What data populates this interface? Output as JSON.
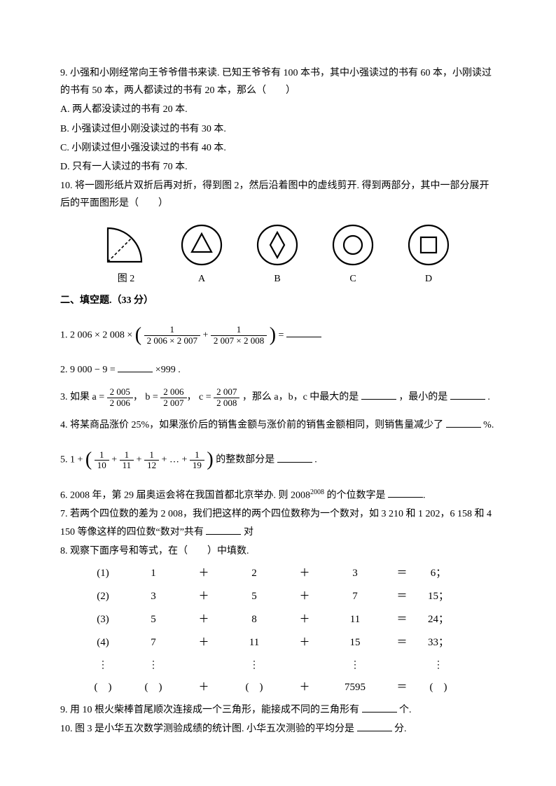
{
  "q9": {
    "stem": "9. 小强和小刚经常向王爷爷借书来读. 已知王爷爷有 100 本书，其中小强读过的书有 60 本，小刚读过的书有 50 本，两人都读过的书有 20 本，那么（　　）",
    "A": "A. 两人都没读过的书有 20 本.",
    "B": "B. 小强读过但小刚没读过的书有 30 本.",
    "C": "C. 小刚读过但小强没读过的书有 40 本.",
    "D": "D. 只有一人读过的书有 70 本."
  },
  "q10": {
    "stem": "10. 将一圆形纸片双折后再对折，得到图 2，然后沿着图中的虚线剪开. 得到两部分，其中一部分展开后的平面图形是（　　）",
    "labels": {
      "fig": "图 2",
      "A": "A",
      "B": "B",
      "C": "C",
      "D": "D"
    },
    "svg": {
      "circle_stroke": "#000000",
      "circle_fill": "#ffffff",
      "stroke_width": 2
    }
  },
  "section2": "二、填空题.（33 分）",
  "f1": {
    "prefix": "1. ",
    "lhs_a": "2 006 × 2 008 ×",
    "frac1_num": "1",
    "frac1_den": "2 006 × 2 007",
    "plus": "+",
    "frac2_num": "1",
    "frac2_den": "2 007 × 2 008",
    "eq": "="
  },
  "f2": {
    "text_a": "2. 9 000 − 9 =",
    "text_b": "×999 ."
  },
  "f3": {
    "prefix": "3. 如果 ",
    "a_lhs": "a =",
    "a_num": "2 005",
    "a_den": "2 006",
    "b_lhs": "b =",
    "b_num": "2 006",
    "b_den": "2 007",
    "c_lhs": "c =",
    "c_num": "2 007",
    "c_den": "2 008",
    "mid": "，那么 a，b，c 中最大的是",
    "mid2": "，最小的是",
    "end": "."
  },
  "f4": {
    "text": "4. 将某商品涨价 25%，如果涨价后的销售金额与涨价前的销售金额相同，则销售量减少了",
    "suffix": "%."
  },
  "f5": {
    "prefix": "5. ",
    "lead": "1 +",
    "t1_num": "1",
    "t1_den": "10",
    "t2_num": "1",
    "t2_den": "11",
    "t3_num": "1",
    "t3_den": "12",
    "dots": "+ … +",
    "t4_num": "1",
    "t4_den": "19",
    "tail": "的整数部分是",
    "end": "."
  },
  "f6": {
    "a": "6. 2008 年，第 29 届奥运会将在我国首都北京举办. 则 2008",
    "sup": "2008",
    "b": " 的个位数字是",
    "end": "."
  },
  "f7": {
    "a": "7. 若两个四位数的差为 2 008，我们把这样的两个四位数称为一个数对，如 3 210 和 1 202，6 158 和 4 150 等像这样的四位数“数对”共有",
    "end": "对"
  },
  "f8": {
    "title": "8. 观察下面序号和等式，在（　　）中填数.",
    "rows": [
      {
        "n": "(1)",
        "a": "1",
        "b": "2",
        "c": "3",
        "r": "6；"
      },
      {
        "n": "(2)",
        "a": "3",
        "b": "5",
        "c": "7",
        "r": "15；"
      },
      {
        "n": "(3)",
        "a": "5",
        "b": "8",
        "c": "11",
        "r": "24；"
      },
      {
        "n": "(4)",
        "a": "7",
        "b": "11",
        "c": "15",
        "r": "33；"
      }
    ],
    "vdots": "⋮",
    "last": {
      "n": "(　)",
      "a": "(　)",
      "b": "(　)",
      "c": "7595",
      "r": "(　)"
    }
  },
  "f9": {
    "a": "9. 用 10 根火柴棒首尾顺次连接成一个三角形，能接成不同的三角形有",
    "end": "个."
  },
  "f10": {
    "a": "10. 图 3 是小华五次数学测验成绩的统计图. 小华五次测验的平均分是",
    "end": "分."
  }
}
